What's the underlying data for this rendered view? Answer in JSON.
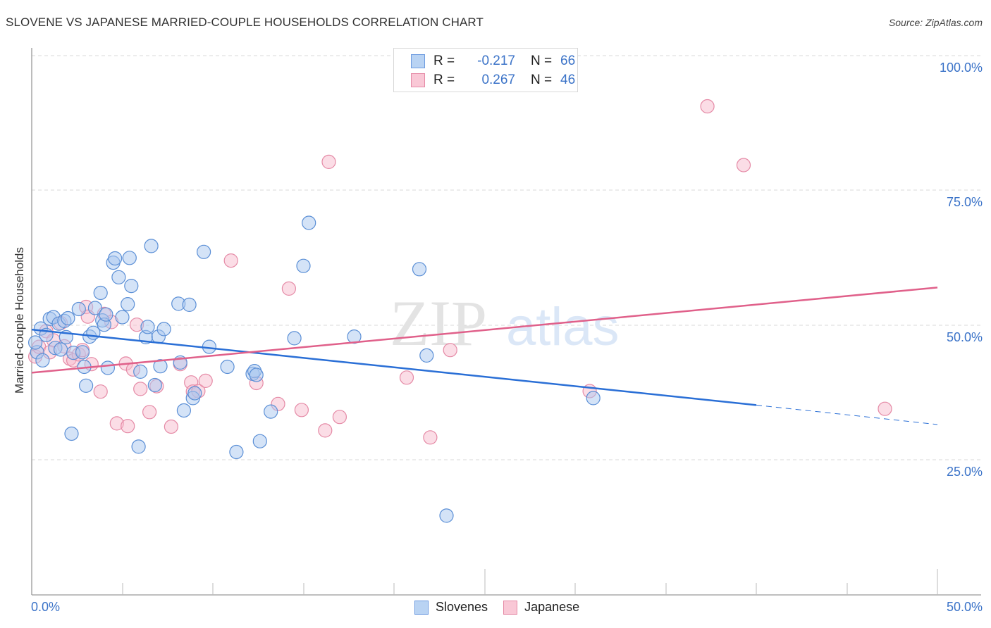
{
  "header": {
    "title": "SLOVENE VS JAPANESE MARRIED-COUPLE HOUSEHOLDS CORRELATION CHART",
    "source": "Source: ZipAtlas.com"
  },
  "legend": {
    "rows": [
      {
        "series": "Slovenes",
        "r_label": "R =",
        "r_value": "-0.217",
        "n_label": "N =",
        "n_value": "66",
        "color": "#a9c8f0",
        "border": "#5b8fd6"
      },
      {
        "series": "Japanese",
        "r_label": "R =",
        "r_value": "0.267",
        "n_label": "N =",
        "n_value": "46",
        "color": "#f7bccd",
        "border": "#e07f9c"
      }
    ],
    "bottom": [
      {
        "label": "Slovenes"
      },
      {
        "label": "Japanese"
      }
    ]
  },
  "axes": {
    "ylabel": "Married-couple Households",
    "yticks": [
      "100.0%",
      "75.0%",
      "50.0%",
      "25.0%"
    ],
    "xticks": [
      "0.0%",
      "50.0%"
    ]
  },
  "watermark": {
    "zip": "ZIP",
    "atlas": "atlas"
  },
  "colors": {
    "slovenes_fill": "#a9c8f0",
    "slovenes_line": "#2a6fd6",
    "japanese_fill": "#f7bccd",
    "japanese_line": "#e0608a",
    "tick_label": "#3b73c8"
  },
  "chart_data": {
    "type": "scatter",
    "title": "SLOVENE VS JAPANESE MARRIED-COUPLE HOUSEHOLDS CORRELATION CHART",
    "xlabel": "",
    "ylabel": "Married-couple Households",
    "xlim": [
      0,
      50
    ],
    "ylim": [
      0,
      100
    ],
    "x_tick_labels": [
      "0.0%",
      "50.0%"
    ],
    "y_tick_labels": [
      "25.0%",
      "50.0%",
      "75.0%",
      "100.0%"
    ],
    "grid": "horizontal dashed",
    "legend_position": "top-center and bottom",
    "series": [
      {
        "name": "Slovenes",
        "R": -0.217,
        "N": 66,
        "trend": {
          "x0": 0,
          "y0": 49.2,
          "x1": 40,
          "y1": 35.2,
          "dashed_extension_to": {
            "x": 50,
            "y": 31.6
          }
        },
        "points": [
          [
            0.3,
            45.0
          ],
          [
            0.5,
            49.4
          ],
          [
            0.6,
            43.5
          ],
          [
            0.8,
            48.2
          ],
          [
            1.0,
            51.2
          ],
          [
            1.2,
            51.5
          ],
          [
            1.3,
            45.8
          ],
          [
            1.5,
            50.3
          ],
          [
            1.6,
            45.5
          ],
          [
            1.8,
            50.8
          ],
          [
            1.9,
            47.8
          ],
          [
            2.0,
            51.3
          ],
          [
            2.2,
            29.9
          ],
          [
            2.3,
            44.9
          ],
          [
            2.6,
            53.0
          ],
          [
            2.8,
            45.0
          ],
          [
            2.9,
            42.3
          ],
          [
            3.0,
            38.8
          ],
          [
            3.2,
            47.9
          ],
          [
            3.4,
            48.6
          ],
          [
            3.5,
            53.2
          ],
          [
            3.8,
            56.0
          ],
          [
            3.9,
            50.9
          ],
          [
            4.0,
            50.1
          ],
          [
            4.2,
            42.1
          ],
          [
            4.5,
            61.6
          ],
          [
            4.6,
            62.4
          ],
          [
            4.8,
            58.9
          ],
          [
            5.0,
            51.5
          ],
          [
            5.3,
            53.9
          ],
          [
            5.4,
            62.5
          ],
          [
            5.5,
            57.3
          ],
          [
            5.9,
            27.5
          ],
          [
            6.0,
            41.4
          ],
          [
            6.3,
            47.8
          ],
          [
            6.4,
            49.7
          ],
          [
            6.6,
            64.7
          ],
          [
            6.8,
            38.9
          ],
          [
            7.0,
            47.9
          ],
          [
            7.1,
            42.4
          ],
          [
            7.3,
            49.3
          ],
          [
            8.1,
            54.0
          ],
          [
            8.2,
            43.1
          ],
          [
            8.4,
            34.2
          ],
          [
            8.7,
            53.8
          ],
          [
            8.9,
            36.5
          ],
          [
            9.0,
            37.4
          ],
          [
            9.5,
            63.6
          ],
          [
            9.8,
            46.0
          ],
          [
            10.8,
            42.3
          ],
          [
            11.3,
            26.5
          ],
          [
            12.2,
            41.0
          ],
          [
            12.3,
            41.5
          ],
          [
            12.6,
            28.5
          ],
          [
            13.2,
            34.0
          ],
          [
            14.5,
            47.6
          ],
          [
            15.0,
            61.0
          ],
          [
            15.3,
            69.0
          ],
          [
            17.8,
            47.9
          ],
          [
            21.4,
            60.4
          ],
          [
            21.8,
            44.4
          ],
          [
            22.9,
            14.7
          ],
          [
            31.0,
            36.5
          ],
          [
            0.2,
            46.8
          ],
          [
            4.1,
            52.0
          ],
          [
            12.4,
            40.8
          ]
        ]
      },
      {
        "name": "Japanese",
        "R": 0.267,
        "N": 46,
        "trend": {
          "x0": 0,
          "y0": 41.2,
          "x1": 50,
          "y1": 57.0
        },
        "points": [
          [
            0.2,
            44.2
          ],
          [
            0.4,
            46.0
          ],
          [
            0.8,
            48.9
          ],
          [
            1.2,
            47.2
          ],
          [
            1.6,
            50.4
          ],
          [
            1.8,
            46.1
          ],
          [
            2.1,
            43.8
          ],
          [
            2.3,
            43.5
          ],
          [
            2.6,
            44.6
          ],
          [
            2.8,
            45.4
          ],
          [
            3.0,
            53.4
          ],
          [
            3.3,
            42.8
          ],
          [
            3.8,
            37.7
          ],
          [
            4.0,
            52.1
          ],
          [
            4.4,
            50.6
          ],
          [
            4.7,
            31.8
          ],
          [
            5.2,
            42.9
          ],
          [
            5.3,
            31.3
          ],
          [
            5.6,
            41.8
          ],
          [
            6.0,
            38.2
          ],
          [
            6.5,
            33.9
          ],
          [
            6.9,
            38.7
          ],
          [
            7.7,
            31.2
          ],
          [
            8.2,
            42.8
          ],
          [
            8.8,
            39.4
          ],
          [
            8.9,
            37.7
          ],
          [
            9.2,
            37.8
          ],
          [
            9.6,
            39.7
          ],
          [
            11.0,
            62.0
          ],
          [
            12.4,
            39.3
          ],
          [
            13.6,
            35.4
          ],
          [
            14.2,
            56.8
          ],
          [
            14.9,
            34.3
          ],
          [
            16.2,
            30.5
          ],
          [
            16.4,
            80.3
          ],
          [
            17.0,
            33.0
          ],
          [
            20.7,
            40.3
          ],
          [
            22.0,
            29.2
          ],
          [
            23.1,
            45.4
          ],
          [
            30.8,
            37.8
          ],
          [
            37.3,
            90.6
          ],
          [
            39.3,
            79.7
          ],
          [
            47.1,
            34.5
          ],
          [
            3.1,
            51.6
          ],
          [
            5.8,
            50.1
          ],
          [
            1.0,
            45.0
          ]
        ]
      }
    ]
  }
}
